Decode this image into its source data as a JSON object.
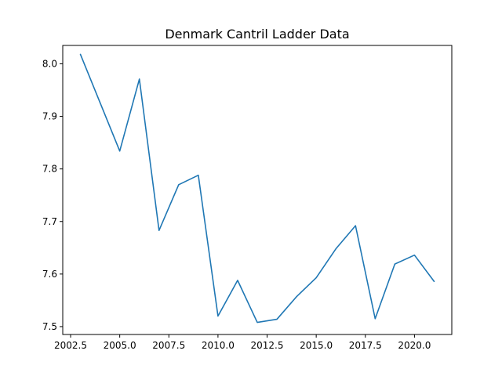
{
  "chart_data": {
    "type": "line",
    "title": "Denmark Cantril Ladder Data",
    "xlabel": "",
    "ylabel": "",
    "xlim": [
      2002.1,
      2021.9
    ],
    "ylim": [
      7.485,
      8.035
    ],
    "x_ticks": [
      2002.5,
      2005.0,
      2007.5,
      2010.0,
      2012.5,
      2015.0,
      2017.5,
      2020.0
    ],
    "x_tick_labels": [
      "2002.5",
      "2005.0",
      "2007.5",
      "2010.0",
      "2012.5",
      "2015.0",
      "2017.5",
      "2020.0"
    ],
    "y_ticks": [
      7.5,
      7.6,
      7.7,
      7.8,
      7.9,
      8.0
    ],
    "y_tick_labels": [
      "7.5",
      "7.6",
      "7.7",
      "7.8",
      "7.9",
      "8.0"
    ],
    "grid": false,
    "color": "#1f77b4",
    "series": [
      {
        "x": [
          2003,
          2005,
          2006,
          2007,
          2008,
          2009,
          2010,
          2011,
          2012,
          2013,
          2014,
          2015,
          2016,
          2017,
          2018,
          2019,
          2020,
          2021
        ],
        "values": [
          8.018,
          7.834,
          7.971,
          7.683,
          7.77,
          7.788,
          7.52,
          7.588,
          7.508,
          7.514,
          7.557,
          7.593,
          7.648,
          7.692,
          7.515,
          7.619,
          7.636,
          7.586
        ]
      }
    ]
  }
}
